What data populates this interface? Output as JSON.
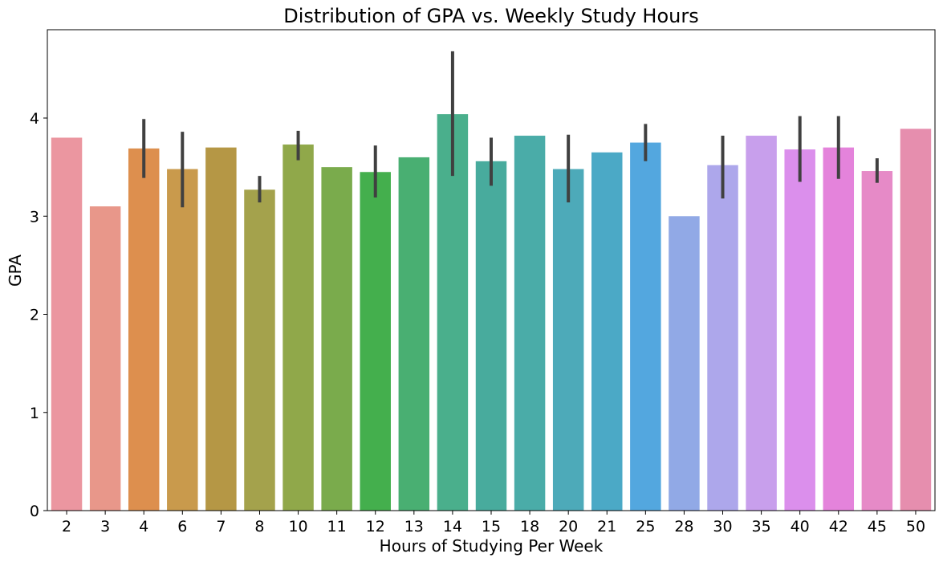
{
  "chart_data": {
    "type": "bar",
    "title": "Distribution of GPA vs. Weekly Study Hours",
    "xlabel": "Hours of Studying Per Week",
    "ylabel": "GPA",
    "ylim": [
      0,
      4.9
    ],
    "yticks": [
      "0",
      "1",
      "2",
      "3",
      "4"
    ],
    "grid": false,
    "legend": "none",
    "categories": [
      "2",
      "3",
      "4",
      "6",
      "7",
      "8",
      "10",
      "11",
      "12",
      "13",
      "14",
      "15",
      "18",
      "20",
      "21",
      "25",
      "28",
      "30",
      "35",
      "40",
      "42",
      "45",
      "50"
    ],
    "values": [
      3.8,
      3.1,
      3.69,
      3.48,
      3.7,
      3.27,
      3.73,
      3.5,
      3.45,
      3.6,
      4.04,
      3.56,
      3.82,
      3.48,
      3.65,
      3.75,
      3.0,
      3.52,
      3.82,
      3.68,
      3.7,
      3.46,
      3.89
    ],
    "error_bars": [
      null,
      null,
      [
        3.39,
        3.99
      ],
      [
        3.09,
        3.86
      ],
      null,
      [
        3.14,
        3.41
      ],
      [
        3.57,
        3.87
      ],
      null,
      [
        3.19,
        3.72
      ],
      null,
      [
        3.41,
        4.68
      ],
      [
        3.31,
        3.8
      ],
      null,
      [
        3.14,
        3.83
      ],
      null,
      [
        3.56,
        3.94
      ],
      null,
      [
        3.18,
        3.82
      ],
      null,
      [
        3.35,
        4.02
      ],
      [
        3.38,
        4.02
      ],
      [
        3.34,
        3.59
      ],
      null
    ],
    "colors": [
      "#eb96a0",
      "#e8978a",
      "#dd8f4e",
      "#c99a4c",
      "#b59745",
      "#a4a24c",
      "#90a84a",
      "#7aab4c",
      "#44af4d",
      "#49af72",
      "#4aaf8c",
      "#48ab9d",
      "#4aaca8",
      "#4daab9",
      "#4ba9c6",
      "#53a7df",
      "#91a9e6",
      "#ada7eb",
      "#c89fec",
      "#db8fec",
      "#e483db",
      "#e68ac7",
      "#e68eae"
    ],
    "error_color": "#404040"
  }
}
